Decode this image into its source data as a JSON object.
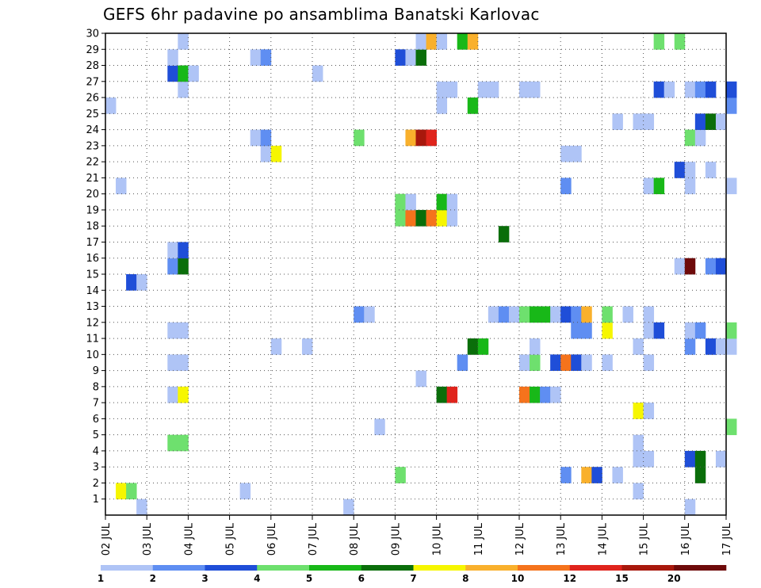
{
  "title": "GEFS 6hr padavine po ansamblima Banatski Karlovac",
  "chart_data": {
    "type": "heatmap",
    "title": "GEFS 6hr padavine po ansamblima Banatski Karlovac",
    "xlabel": "",
    "ylabel": "",
    "x_ticks": [
      "02 JUL",
      "03 JUL",
      "04 JUL",
      "05 JUL",
      "06 JUL",
      "07 JUL",
      "08 JUL",
      "09 JUL",
      "10 JUL",
      "11 JUL",
      "12 JUL",
      "13 JUL",
      "14 JUL",
      "15 JUL",
      "16 JUL",
      "17 JUL"
    ],
    "y_ticks": [
      "1",
      "2",
      "3",
      "4",
      "5",
      "6",
      "7",
      "8",
      "9",
      "10",
      "11",
      "12",
      "13",
      "14",
      "15",
      "16",
      "17",
      "18",
      "19",
      "20",
      "21",
      "22",
      "23",
      "24",
      "25",
      "26",
      "27",
      "28",
      "29",
      "30"
    ],
    "x_range": [
      0,
      15
    ],
    "x_unit_note": "days from 02 JUL 00Z, 6-hour steps",
    "y_range": [
      0,
      30
    ],
    "grid": true,
    "colorbar": {
      "position": "bottom",
      "levels": [
        "1",
        "2",
        "3",
        "4",
        "5",
        "6",
        "7",
        "8",
        "10",
        "12",
        "15",
        "20"
      ],
      "colors": [
        "#afc4f6",
        "#5f8ef2",
        "#1f4ed8",
        "#6ee06e",
        "#18b818",
        "#0a6e0a",
        "#f6f600",
        "#f9b02c",
        "#f5731c",
        "#e0241c",
        "#a8180c",
        "#6e0a0a"
      ]
    },
    "cells": [
      {
        "x": 0.25,
        "y": 1,
        "c": 6
      },
      {
        "x": 0.5,
        "y": 1,
        "c": 3
      },
      {
        "x": 3.25,
        "y": 1,
        "c": 0
      },
      {
        "x": 12.75,
        "y": 1,
        "c": 0
      },
      {
        "x": 7.0,
        "y": 2,
        "c": 3
      },
      {
        "x": 11.0,
        "y": 2,
        "c": 1
      },
      {
        "x": 11.5,
        "y": 2,
        "c": 7
      },
      {
        "x": 11.75,
        "y": 2,
        "c": 2
      },
      {
        "x": 12.25,
        "y": 2,
        "c": 0
      },
      {
        "x": 14.25,
        "y": 2,
        "c": 5
      },
      {
        "x": 12.75,
        "y": 3,
        "c": 0
      },
      {
        "x": 13.0,
        "y": 3,
        "c": 0
      },
      {
        "x": 14.0,
        "y": 3,
        "c": 2
      },
      {
        "x": 14.25,
        "y": 3,
        "c": 5
      },
      {
        "x": 14.75,
        "y": 3,
        "c": 0
      },
      {
        "x": 1.5,
        "y": 4,
        "c": 3
      },
      {
        "x": 1.75,
        "y": 4,
        "c": 3
      },
      {
        "x": 12.75,
        "y": 4,
        "c": 0
      },
      {
        "x": 6.5,
        "y": 5,
        "c": 0
      },
      {
        "x": 15.0,
        "y": 5,
        "c": 3
      },
      {
        "x": 12.75,
        "y": 6,
        "c": 6
      },
      {
        "x": 13.0,
        "y": 6,
        "c": 0
      },
      {
        "x": 1.5,
        "y": 7,
        "c": 0
      },
      {
        "x": 1.75,
        "y": 7,
        "c": 6
      },
      {
        "x": 8.0,
        "y": 7,
        "c": 5
      },
      {
        "x": 8.25,
        "y": 7,
        "c": 9
      },
      {
        "x": 10.0,
        "y": 7,
        "c": 8
      },
      {
        "x": 10.25,
        "y": 7,
        "c": 4
      },
      {
        "x": 10.5,
        "y": 7,
        "c": 1
      },
      {
        "x": 10.75,
        "y": 7,
        "c": 0
      },
      {
        "x": 7.5,
        "y": 8,
        "c": 0
      },
      {
        "x": 1.5,
        "y": 9,
        "c": 0
      },
      {
        "x": 1.75,
        "y": 9,
        "c": 0
      },
      {
        "x": 8.5,
        "y": 9,
        "c": 1
      },
      {
        "x": 10.0,
        "y": 9,
        "c": 0
      },
      {
        "x": 10.25,
        "y": 9,
        "c": 3
      },
      {
        "x": 10.75,
        "y": 9,
        "c": 2
      },
      {
        "x": 11.0,
        "y": 9,
        "c": 8
      },
      {
        "x": 11.25,
        "y": 9,
        "c": 2
      },
      {
        "x": 11.5,
        "y": 9,
        "c": 0
      },
      {
        "x": 12.0,
        "y": 9,
        "c": 0
      },
      {
        "x": 13.0,
        "y": 9,
        "c": 0
      },
      {
        "x": 4.0,
        "y": 10,
        "c": 0
      },
      {
        "x": 4.75,
        "y": 10,
        "c": 0
      },
      {
        "x": 8.75,
        "y": 10,
        "c": 5
      },
      {
        "x": 9.0,
        "y": 10,
        "c": 4
      },
      {
        "x": 10.25,
        "y": 10,
        "c": 0
      },
      {
        "x": 12.75,
        "y": 10,
        "c": 0
      },
      {
        "x": 14.0,
        "y": 10,
        "c": 1
      },
      {
        "x": 14.5,
        "y": 10,
        "c": 2
      },
      {
        "x": 14.75,
        "y": 10,
        "c": 0
      },
      {
        "x": 15.0,
        "y": 10,
        "c": 0
      },
      {
        "x": 1.5,
        "y": 11,
        "c": 0
      },
      {
        "x": 1.75,
        "y": 11,
        "c": 0
      },
      {
        "x": 11.25,
        "y": 11,
        "c": 1
      },
      {
        "x": 11.5,
        "y": 11,
        "c": 1
      },
      {
        "x": 12.0,
        "y": 11,
        "c": 6
      },
      {
        "x": 13.0,
        "y": 11,
        "c": 0
      },
      {
        "x": 13.25,
        "y": 11,
        "c": 2
      },
      {
        "x": 14.0,
        "y": 11,
        "c": 0
      },
      {
        "x": 14.25,
        "y": 11,
        "c": 1
      },
      {
        "x": 15.0,
        "y": 11,
        "c": 3
      },
      {
        "x": 6.0,
        "y": 12,
        "c": 1
      },
      {
        "x": 6.25,
        "y": 12,
        "c": 0
      },
      {
        "x": 9.25,
        "y": 12,
        "c": 0
      },
      {
        "x": 9.5,
        "y": 12,
        "c": 1
      },
      {
        "x": 9.75,
        "y": 12,
        "c": 0
      },
      {
        "x": 10.0,
        "y": 12,
        "c": 3
      },
      {
        "x": 10.25,
        "y": 12,
        "c": 4
      },
      {
        "x": 10.5,
        "y": 12,
        "c": 4
      },
      {
        "x": 10.75,
        "y": 12,
        "c": 0
      },
      {
        "x": 11.0,
        "y": 12,
        "c": 2
      },
      {
        "x": 11.25,
        "y": 12,
        "c": 1
      },
      {
        "x": 11.5,
        "y": 12,
        "c": 7
      },
      {
        "x": 12.0,
        "y": 12,
        "c": 3
      },
      {
        "x": 12.5,
        "y": 12,
        "c": 0
      },
      {
        "x": 13.0,
        "y": 12,
        "c": 0
      },
      {
        "x": 0.5,
        "y": 14,
        "c": 2
      },
      {
        "x": 0.75,
        "y": 14,
        "c": 0
      },
      {
        "x": 1.5,
        "y": 15,
        "c": 1
      },
      {
        "x": 1.75,
        "y": 15,
        "c": 5
      },
      {
        "x": 13.75,
        "y": 15,
        "c": 0
      },
      {
        "x": 14.0,
        "y": 15,
        "c": 11
      },
      {
        "x": 14.5,
        "y": 15,
        "c": 1
      },
      {
        "x": 14.75,
        "y": 15,
        "c": 2
      },
      {
        "x": 1.5,
        "y": 16,
        "c": 0
      },
      {
        "x": 1.75,
        "y": 16,
        "c": 2
      },
      {
        "x": 9.5,
        "y": 17,
        "c": 5
      },
      {
        "x": 7.0,
        "y": 18,
        "c": 3
      },
      {
        "x": 7.25,
        "y": 18,
        "c": 8
      },
      {
        "x": 7.5,
        "y": 18,
        "c": 5
      },
      {
        "x": 7.75,
        "y": 18,
        "c": 8
      },
      {
        "x": 8.0,
        "y": 18,
        "c": 6
      },
      {
        "x": 8.25,
        "y": 18,
        "c": 0
      },
      {
        "x": 7.0,
        "y": 19,
        "c": 3
      },
      {
        "x": 7.25,
        "y": 19,
        "c": 0
      },
      {
        "x": 8.0,
        "y": 19,
        "c": 4
      },
      {
        "x": 8.25,
        "y": 19,
        "c": 0
      },
      {
        "x": 0.25,
        "y": 20,
        "c": 0
      },
      {
        "x": 11.0,
        "y": 20,
        "c": 1
      },
      {
        "x": 13.0,
        "y": 20,
        "c": 0
      },
      {
        "x": 13.25,
        "y": 20,
        "c": 4
      },
      {
        "x": 14.0,
        "y": 20,
        "c": 0
      },
      {
        "x": 15.0,
        "y": 20,
        "c": 0
      },
      {
        "x": 13.75,
        "y": 21,
        "c": 2
      },
      {
        "x": 14.0,
        "y": 21,
        "c": 0
      },
      {
        "x": 14.5,
        "y": 21,
        "c": 0
      },
      {
        "x": 3.75,
        "y": 22,
        "c": 0
      },
      {
        "x": 4.0,
        "y": 22,
        "c": 6
      },
      {
        "x": 11.0,
        "y": 22,
        "c": 0
      },
      {
        "x": 11.25,
        "y": 22,
        "c": 0
      },
      {
        "x": 3.5,
        "y": 23,
        "c": 0
      },
      {
        "x": 3.75,
        "y": 23,
        "c": 1
      },
      {
        "x": 6.0,
        "y": 23,
        "c": 3
      },
      {
        "x": 7.25,
        "y": 23,
        "c": 7
      },
      {
        "x": 7.5,
        "y": 23,
        "c": 10
      },
      {
        "x": 7.75,
        "y": 23,
        "c": 9
      },
      {
        "x": 14.0,
        "y": 23,
        "c": 3
      },
      {
        "x": 14.25,
        "y": 23,
        "c": 0
      },
      {
        "x": 12.25,
        "y": 24,
        "c": 0
      },
      {
        "x": 12.75,
        "y": 24,
        "c": 0
      },
      {
        "x": 13.0,
        "y": 24,
        "c": 0
      },
      {
        "x": 14.25,
        "y": 24,
        "c": 2
      },
      {
        "x": 14.5,
        "y": 24,
        "c": 5
      },
      {
        "x": 14.75,
        "y": 24,
        "c": 0
      },
      {
        "x": 0.0,
        "y": 25,
        "c": 0
      },
      {
        "x": 8.0,
        "y": 25,
        "c": 0
      },
      {
        "x": 8.75,
        "y": 25,
        "c": 4
      },
      {
        "x": 15.0,
        "y": 25,
        "c": 1
      },
      {
        "x": 1.75,
        "y": 26,
        "c": 0
      },
      {
        "x": 8.0,
        "y": 26,
        "c": 0
      },
      {
        "x": 8.25,
        "y": 26,
        "c": 0
      },
      {
        "x": 9.0,
        "y": 26,
        "c": 0
      },
      {
        "x": 9.25,
        "y": 26,
        "c": 0
      },
      {
        "x": 10.0,
        "y": 26,
        "c": 0
      },
      {
        "x": 10.25,
        "y": 26,
        "c": 0
      },
      {
        "x": 13.25,
        "y": 26,
        "c": 2
      },
      {
        "x": 13.5,
        "y": 26,
        "c": 0
      },
      {
        "x": 14.0,
        "y": 26,
        "c": 0
      },
      {
        "x": 14.25,
        "y": 26,
        "c": 1
      },
      {
        "x": 14.5,
        "y": 26,
        "c": 2
      },
      {
        "x": 15.0,
        "y": 26,
        "c": 2
      },
      {
        "x": 1.5,
        "y": 27,
        "c": 2
      },
      {
        "x": 1.75,
        "y": 27,
        "c": 4
      },
      {
        "x": 2.0,
        "y": 27,
        "c": 0
      },
      {
        "x": 5.0,
        "y": 27,
        "c": 0
      },
      {
        "x": 1.5,
        "y": 28,
        "c": 0
      },
      {
        "x": 3.5,
        "y": 28,
        "c": 0
      },
      {
        "x": 3.75,
        "y": 28,
        "c": 1
      },
      {
        "x": 7.0,
        "y": 28,
        "c": 2
      },
      {
        "x": 7.25,
        "y": 28,
        "c": 0
      },
      {
        "x": 7.5,
        "y": 28,
        "c": 5
      },
      {
        "x": 1.75,
        "y": 29,
        "c": 0
      },
      {
        "x": 7.5,
        "y": 29,
        "c": 0
      },
      {
        "x": 7.75,
        "y": 29,
        "c": 7
      },
      {
        "x": 8.0,
        "y": 29,
        "c": 0
      },
      {
        "x": 8.5,
        "y": 29,
        "c": 4
      },
      {
        "x": 8.75,
        "y": 29,
        "c": 7
      },
      {
        "x": 13.25,
        "y": 29,
        "c": 3
      },
      {
        "x": 13.75,
        "y": 29,
        "c": 3
      },
      {
        "x": 0.75,
        "y": 0,
        "c": 0
      },
      {
        "x": 5.75,
        "y": 0,
        "c": 0
      },
      {
        "x": 14.0,
        "y": 0,
        "c": 0
      }
    ]
  }
}
